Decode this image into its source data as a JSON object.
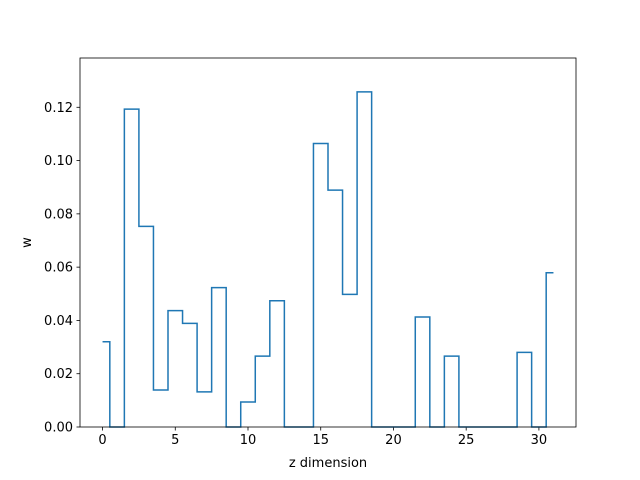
{
  "chart_data": {
    "type": "line",
    "style": "step",
    "xlabel": "z dimension",
    "ylabel": "w",
    "xlim": [
      -1.55,
      32.55
    ],
    "ylim": [
      0,
      0.1385
    ],
    "xticks": [
      0,
      5,
      10,
      15,
      20,
      25,
      30
    ],
    "yticks": [
      0.0,
      0.02,
      0.04,
      0.06,
      0.08,
      0.1,
      0.12
    ],
    "ytick_labels": [
      "0.00",
      "0.02",
      "0.04",
      "0.06",
      "0.08",
      "0.10",
      "0.12"
    ],
    "grid": false,
    "colors": {
      "line": "#1f77b4",
      "axes": "#000000"
    },
    "x": [
      0,
      1,
      2,
      3,
      4,
      5,
      6,
      7,
      8,
      9,
      10,
      11,
      12,
      13,
      14,
      15,
      16,
      17,
      18,
      19,
      20,
      21,
      22,
      23,
      24,
      25,
      26,
      27,
      28,
      29,
      30,
      31
    ],
    "values": [
      0.032,
      0.0,
      0.1193,
      0.0753,
      0.0139,
      0.0437,
      0.0389,
      0.0132,
      0.0523,
      0.0,
      0.0094,
      0.0266,
      0.0474,
      0.0,
      0.0,
      0.1064,
      0.0889,
      0.0498,
      0.1258,
      0.0,
      0.0,
      0.0,
      0.0413,
      0.0,
      0.0266,
      0.0,
      0.0,
      0.0,
      0.0,
      0.028,
      0.0,
      0.0579
    ]
  }
}
